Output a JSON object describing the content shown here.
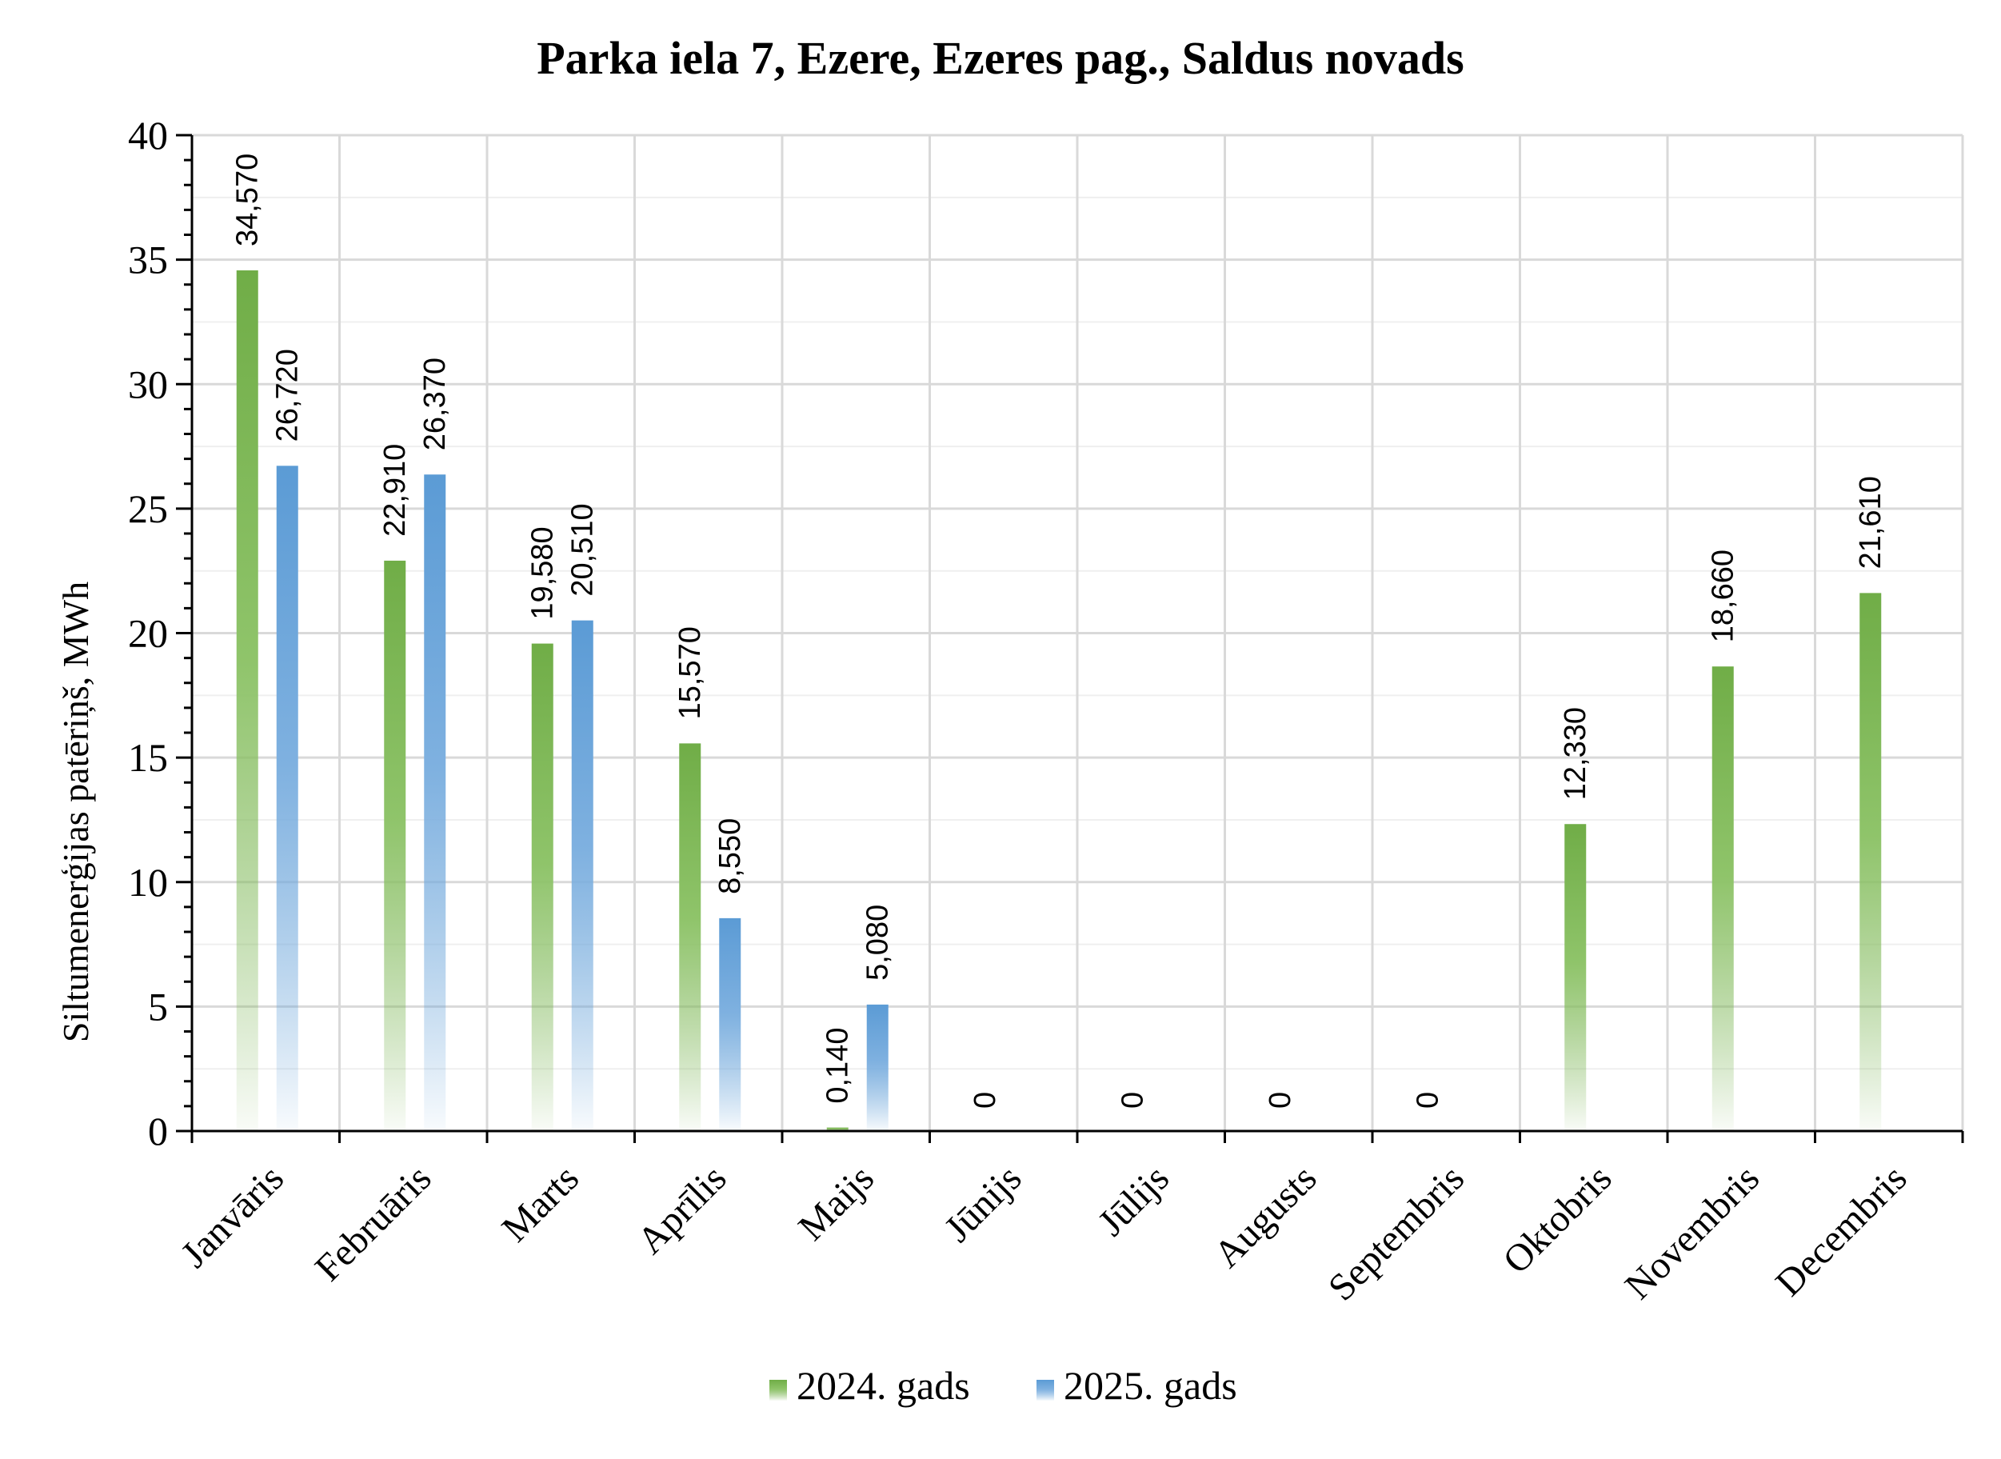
{
  "chart_data": {
    "type": "bar",
    "title": "Parka iela 7, Ezere, Ezeres pag., Saldus novads",
    "xlabel": "",
    "ylabel": "Siltumenerģijas patēriņš, MWh",
    "ylim": [
      0,
      40
    ],
    "yticks": [
      "0",
      "5",
      "10",
      "15",
      "20",
      "25",
      "30",
      "35",
      "40"
    ],
    "grid": true,
    "legend_position": "bottom",
    "categories": [
      "Janvāris",
      "Februāris",
      "Marts",
      "Aprīlis",
      "Maijs",
      "Jūnijs",
      "Jūlijs",
      "Augusts",
      "Septembris",
      "Oktobris",
      "Novembris",
      "Decembris"
    ],
    "series": [
      {
        "name": "2024. gads",
        "color": "#70ad47",
        "values": [
          34.57,
          22.91,
          19.58,
          15.57,
          0.14,
          0,
          0,
          0,
          0,
          12.33,
          18.66,
          21.61
        ],
        "labels": [
          "34,570",
          "22,910",
          "19,580",
          "15,570",
          "0,140",
          "0",
          "0",
          "0",
          "0",
          "12,330",
          "18,660",
          "21,610"
        ]
      },
      {
        "name": "2025. gads",
        "color": "#5b9bd5",
        "values": [
          26.72,
          26.37,
          20.51,
          8.55,
          5.08,
          null,
          null,
          null,
          null,
          null,
          null,
          null
        ],
        "labels": [
          "26,720",
          "26,370",
          "20,510",
          "8,550",
          "5,080",
          null,
          null,
          null,
          null,
          null,
          null,
          null
        ]
      }
    ]
  }
}
